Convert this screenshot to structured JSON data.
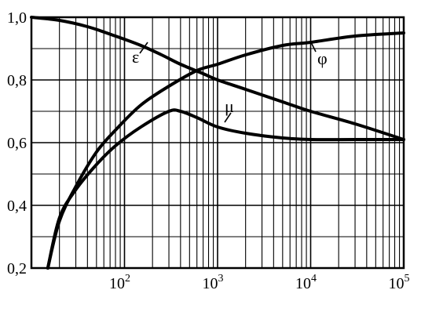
{
  "chart_data": {
    "type": "line",
    "title": "",
    "xlabel": "",
    "ylabel": "",
    "x_scale": "log",
    "xlim": [
      10,
      100000
    ],
    "ylim": [
      0.2,
      1.0
    ],
    "grid": true,
    "y_ticks": [
      {
        "value": 1.0,
        "label": "1,0"
      },
      {
        "value": 0.8,
        "label": "0,8"
      },
      {
        "value": 0.6,
        "label": "0,6"
      },
      {
        "value": 0.4,
        "label": "0,4"
      },
      {
        "value": 0.2,
        "label": "0,2"
      }
    ],
    "x_ticks": [
      {
        "value": 100,
        "base": "10",
        "exp": "2"
      },
      {
        "value": 1000,
        "base": "10",
        "exp": "3"
      },
      {
        "value": 10000,
        "base": "10",
        "exp": "4"
      },
      {
        "value": 100000,
        "base": "10",
        "exp": "5"
      }
    ],
    "series": [
      {
        "name": "ε",
        "x": [
          10,
          20,
          40,
          80,
          150,
          250,
          400,
          700,
          1000,
          2000,
          5000,
          10000,
          30000,
          100000
        ],
        "y": [
          1.0,
          0.99,
          0.97,
          0.94,
          0.91,
          0.88,
          0.85,
          0.82,
          0.8,
          0.77,
          0.73,
          0.7,
          0.66,
          0.61
        ]
      },
      {
        "name": "φ",
        "x": [
          15,
          20,
          30,
          50,
          80,
          150,
          300,
          600,
          1000,
          2000,
          5000,
          10000,
          30000,
          100000
        ],
        "y": [
          0.2,
          0.35,
          0.46,
          0.57,
          0.64,
          0.72,
          0.78,
          0.83,
          0.85,
          0.88,
          0.91,
          0.92,
          0.94,
          0.95
        ]
      },
      {
        "name": "μ",
        "x": [
          15,
          20,
          30,
          50,
          80,
          150,
          300,
          400,
          600,
          1000,
          2000,
          5000,
          10000,
          30000,
          100000
        ],
        "y": [
          0.2,
          0.36,
          0.45,
          0.53,
          0.59,
          0.65,
          0.7,
          0.7,
          0.68,
          0.65,
          0.63,
          0.615,
          0.61,
          0.61,
          0.61
        ]
      }
    ]
  }
}
